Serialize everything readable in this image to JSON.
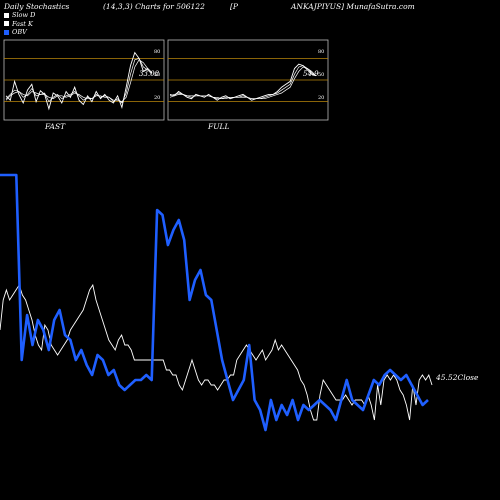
{
  "header": {
    "left": "Daily Stochastics",
    "params": "(14,3,3) Charts for 506122",
    "mid": "[P",
    "right": "ANKAJPIYUS] MunafaSutra.com"
  },
  "legend": [
    {
      "label": "Slow  D",
      "color": "#ffffff"
    },
    {
      "label": "Fast K",
      "color": "#ffffff"
    },
    {
      "label": "OBV",
      "color": "#1f5fff"
    }
  ],
  "colors": {
    "background": "#000000",
    "price": "#ffffff",
    "obv": "#1f5fff",
    "level_line": "#b8860b",
    "panel_border": "#bbbbbb"
  },
  "panels": [
    {
      "name": "FAST",
      "value_label": "33.08",
      "levels": [
        "80",
        "50",
        "20"
      ]
    },
    {
      "name": "FULL",
      "value_label": "54.9",
      "levels": [
        "80",
        "50",
        "20"
      ]
    }
  ],
  "close_label": "45.52Close",
  "chart_data": [
    {
      "type": "line",
      "title": "FAST",
      "ylim": [
        0,
        100
      ],
      "levels": [
        80,
        50,
        20
      ],
      "series": [
        {
          "values": [
            28,
            22,
            48,
            30,
            18,
            36,
            44,
            20,
            35,
            30,
            10,
            32,
            28,
            18,
            34,
            26,
            40,
            22,
            16,
            28,
            20,
            34,
            24,
            30,
            22,
            18,
            28,
            12,
            40,
            70,
            88,
            80,
            62,
            66,
            60
          ]
        },
        {
          "values": [
            24,
            30,
            36,
            34,
            26,
            30,
            38,
            28,
            30,
            32,
            20,
            26,
            30,
            24,
            28,
            30,
            34,
            28,
            22,
            26,
            24,
            30,
            26,
            28,
            26,
            20,
            24,
            18,
            32,
            58,
            78,
            80,
            68,
            64,
            58
          ]
        },
        {
          "values": [
            22,
            28,
            32,
            34,
            30,
            28,
            34,
            32,
            30,
            30,
            26,
            24,
            28,
            28,
            26,
            28,
            32,
            30,
            26,
            24,
            24,
            28,
            28,
            26,
            26,
            22,
            22,
            20,
            26,
            46,
            68,
            78,
            74,
            66,
            60
          ]
        }
      ]
    },
    {
      "type": "line",
      "title": "FULL",
      "ylim": [
        0,
        100
      ],
      "levels": [
        80,
        50,
        20
      ],
      "series": [
        {
          "values": [
            30,
            28,
            34,
            30,
            26,
            24,
            30,
            28,
            26,
            30,
            26,
            22,
            26,
            28,
            24,
            26,
            28,
            30,
            26,
            22,
            24,
            26,
            28,
            30,
            30,
            34,
            40,
            44,
            48,
            66,
            72,
            70,
            64,
            58,
            56
          ]
        },
        {
          "values": [
            28,
            30,
            32,
            30,
            28,
            26,
            28,
            28,
            28,
            28,
            26,
            24,
            24,
            26,
            26,
            26,
            26,
            28,
            26,
            24,
            24,
            24,
            26,
            28,
            30,
            32,
            36,
            40,
            44,
            58,
            68,
            70,
            66,
            60,
            56
          ]
        },
        {
          "values": [
            26,
            28,
            30,
            30,
            28,
            28,
            28,
            28,
            28,
            28,
            26,
            26,
            24,
            24,
            26,
            26,
            26,
            26,
            26,
            24,
            24,
            24,
            24,
            26,
            28,
            30,
            32,
            36,
            40,
            52,
            62,
            68,
            66,
            62,
            56
          ]
        }
      ]
    },
    {
      "type": "line",
      "title": "Price and OBV",
      "series": [
        {
          "values": [
            330,
            300,
            290,
            300,
            295,
            290,
            285,
            295,
            300,
            310,
            320,
            335,
            345,
            350,
            325,
            330,
            345,
            350,
            355,
            350,
            345,
            340,
            330,
            325,
            320,
            315,
            310,
            300,
            290,
            285,
            300,
            310,
            320,
            330,
            340,
            345,
            350,
            340,
            335,
            345,
            345,
            350,
            360,
            360,
            360,
            360,
            360,
            360,
            360,
            360,
            360,
            360,
            370,
            370,
            375,
            375,
            385,
            390,
            380,
            370,
            360,
            370,
            380,
            385,
            380,
            380,
            385,
            385,
            390,
            385,
            380,
            380,
            375,
            375,
            360,
            355,
            350,
            345,
            350,
            355,
            360,
            355,
            350,
            360,
            355,
            350,
            340,
            350,
            345,
            350,
            355,
            360,
            365,
            370,
            380,
            385,
            395,
            410,
            420,
            420,
            395,
            380,
            385,
            390,
            395,
            400,
            400,
            400,
            395,
            400,
            405,
            400,
            400,
            400,
            405,
            395,
            405,
            420,
            385,
            405,
            380,
            375,
            380,
            375,
            380,
            390,
            395,
            405,
            420,
            385,
            405,
            380,
            375,
            380,
            375,
            385
          ]
        },
        {
          "values": [
            175,
            175,
            175,
            175,
            360,
            315,
            345,
            320,
            330,
            350,
            320,
            310,
            335,
            340,
            360,
            350,
            365,
            375,
            355,
            360,
            375,
            370,
            385,
            390,
            385,
            380,
            380,
            375,
            380,
            210,
            215,
            245,
            230,
            220,
            240,
            300,
            280,
            270,
            295,
            300,
            330,
            360,
            380,
            400,
            390,
            380,
            345,
            400,
            410,
            430,
            400,
            420,
            405,
            415,
            400,
            420,
            405,
            410,
            405,
            400,
            405,
            410,
            420,
            400,
            380,
            400,
            405,
            410,
            395,
            380,
            385,
            375,
            370,
            375,
            380,
            375,
            385,
            395,
            405,
            400
          ]
        }
      ]
    }
  ]
}
